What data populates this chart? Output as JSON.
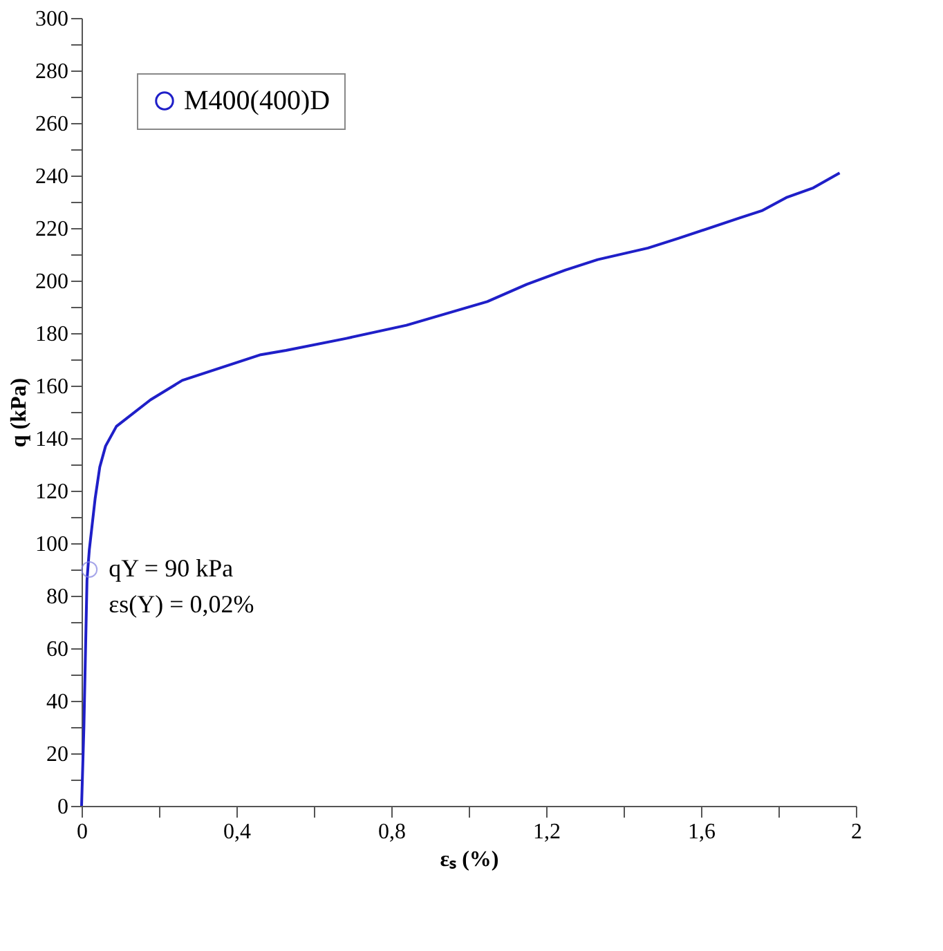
{
  "chart_data": {
    "type": "line",
    "xlabel": "εₛ (%)",
    "ylabel": "q (kPa)",
    "xlim": [
      0,
      2
    ],
    "ylim": [
      0,
      300
    ],
    "xticks": [
      0,
      {
        "value": 0.2,
        "label": null
      },
      {
        "value": 0.4,
        "label": "0,4"
      },
      {
        "value": 0.6,
        "label": null
      },
      {
        "value": 0.8,
        "label": "0,8"
      },
      {
        "value": 1.0,
        "label": null
      },
      {
        "value": 1.2,
        "label": "1,2"
      },
      {
        "value": 1.4,
        "label": null
      },
      {
        "value": 1.6,
        "label": "1,6"
      },
      {
        "value": 1.8,
        "label": null
      },
      2
    ],
    "yticks": [
      0,
      {
        "value": 10,
        "label": null
      },
      20,
      {
        "value": 30,
        "label": null
      },
      40,
      {
        "value": 50,
        "label": null
      },
      60,
      {
        "value": 70,
        "label": null
      },
      80,
      {
        "value": 90,
        "label": null
      },
      100,
      {
        "value": 110,
        "label": null
      },
      120,
      {
        "value": 130,
        "label": null
      },
      140,
      {
        "value": 150,
        "label": null
      },
      160,
      {
        "value": 170,
        "label": null
      },
      180,
      {
        "value": 190,
        "label": null
      },
      200,
      {
        "value": 210,
        "label": null
      },
      220,
      {
        "value": 230,
        "label": null
      },
      240,
      {
        "value": 250,
        "label": null
      },
      260,
      {
        "value": 270,
        "label": null
      },
      280,
      {
        "value": 290,
        "label": null
      },
      300
    ],
    "grid": false,
    "legend": "top left",
    "marker": "none",
    "line_style": "solid",
    "annotations": [
      {
        "text": "qY = 90 kPa",
        "x": 0.02,
        "y": 90
      },
      {
        "text": "εs(Y) = 0,02%",
        "x": 0.02,
        "y": 90
      }
    ],
    "series": [
      {
        "name": "M400(400)D",
        "color": "#1f1fc8",
        "x": [
          0,
          0.006,
          0.009,
          0.014,
          0.02,
          0.035,
          0.047,
          0.062,
          0.09,
          0.178,
          0.26,
          0.463,
          0.528,
          0.684,
          0.839,
          1.048,
          1.15,
          1.249,
          1.333,
          1.463,
          1.54,
          1.698,
          1.757,
          1.82,
          1.89,
          1.958
        ],
        "values": [
          0,
          30,
          51,
          86,
          97.5,
          117,
          129,
          137,
          144.5,
          154.6,
          162,
          171.8,
          173.4,
          178,
          183,
          192,
          198.6,
          204,
          208,
          212.4,
          216,
          223.8,
          226.6,
          231.6,
          235.3,
          241
        ]
      },
      {
        "type": "scatter",
        "marker": "circle",
        "color": "#8080e0",
        "x": [
          0.02
        ],
        "values": [
          90
        ]
      }
    ]
  }
}
